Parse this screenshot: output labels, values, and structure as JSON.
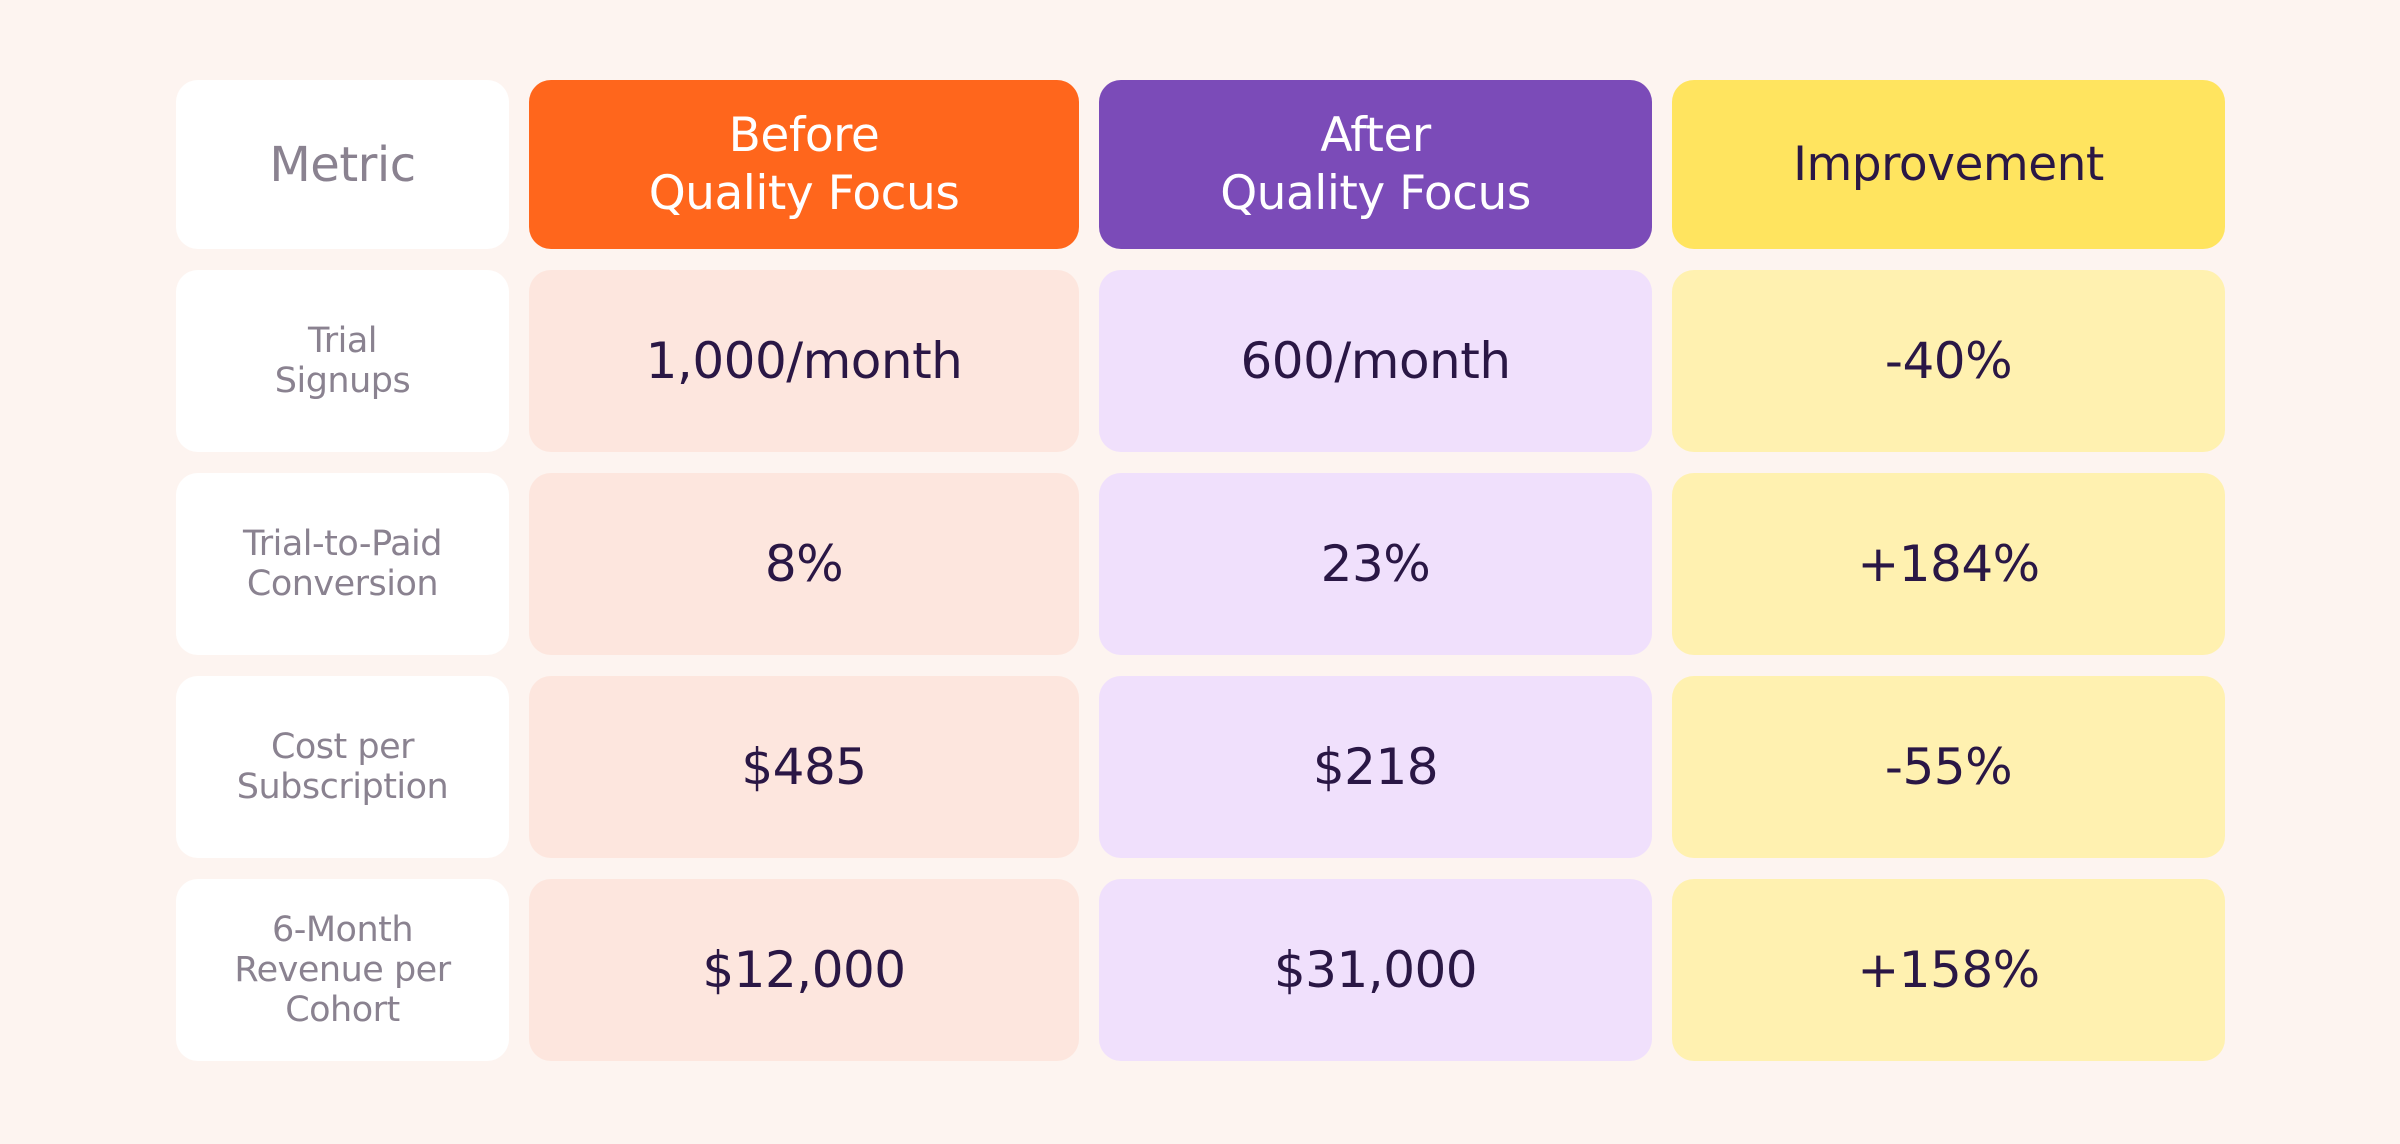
{
  "chart_data": {
    "type": "table",
    "columns": [
      "Metric",
      "Before\nQuality Focus",
      "After\nQuality Focus",
      "Improvement"
    ],
    "rows": [
      {
        "metric": "Trial\nSignups",
        "before": "1,000/month",
        "after": "600/month",
        "improvement": "-40%"
      },
      {
        "metric": "Trial-to-Paid\nConversion",
        "before": "8%",
        "after": "23%",
        "improvement": "+184%"
      },
      {
        "metric": "Cost per\nSubscription",
        "before": "$485",
        "after": "$218",
        "improvement": "-55%"
      },
      {
        "metric": "6-Month\nRevenue per\nCohort",
        "before": "$12,000",
        "after": "$31,000",
        "improvement": "+158%"
      }
    ]
  },
  "colors": {
    "background": "#fdf4f0",
    "before_header": "#ff661c",
    "after_header": "#7b4bb8",
    "improvement_header": "#ffe45f",
    "before_cell": "#fde6de",
    "after_cell": "#f0e0fc",
    "improvement_cell": "#fff1b0",
    "text_dark": "#2a1745",
    "text_muted": "#8a8290"
  }
}
